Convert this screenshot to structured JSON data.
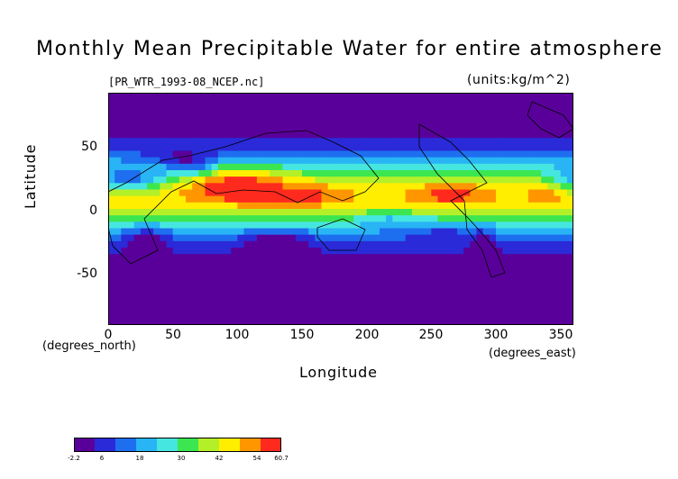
{
  "title": "Monthly Mean Precipitable Water for entire atmosphere",
  "file_label": "[PR_WTR_1993-08_NCEP.nc]",
  "units_label": "(units:kg/m^2)",
  "axes": {
    "xlabel": "Longitude",
    "ylabel": "Latitude",
    "x_unit": "(degrees_east)",
    "y_unit": "(degrees_north)",
    "x_ticks": [
      "0",
      "50",
      "100",
      "150",
      "200",
      "250",
      "300",
      "350"
    ],
    "y_ticks": [
      "50",
      "0",
      "-50"
    ]
  },
  "colorbar": {
    "min": -2.2,
    "max": 60.7,
    "tick_labels": [
      "-2.2",
      "6",
      "18",
      "30",
      "42",
      "54",
      "60.7"
    ]
  },
  "chart_data": {
    "type": "heatmap",
    "variable": "Monthly Mean Precipitable Water for entire atmosphere",
    "units": "kg/m^2",
    "xlim": [
      0,
      360
    ],
    "ylim": [
      -90,
      90
    ],
    "value_range": [
      -2.2,
      60.7
    ],
    "colorscale": [
      "#5a009a",
      "#2a2ad8",
      "#1e6ef0",
      "#28b4f5",
      "#46e6e0",
      "#3ce650",
      "#b4f028",
      "#ffee00",
      "#ff9600",
      "#ff2a1e"
    ]
  }
}
